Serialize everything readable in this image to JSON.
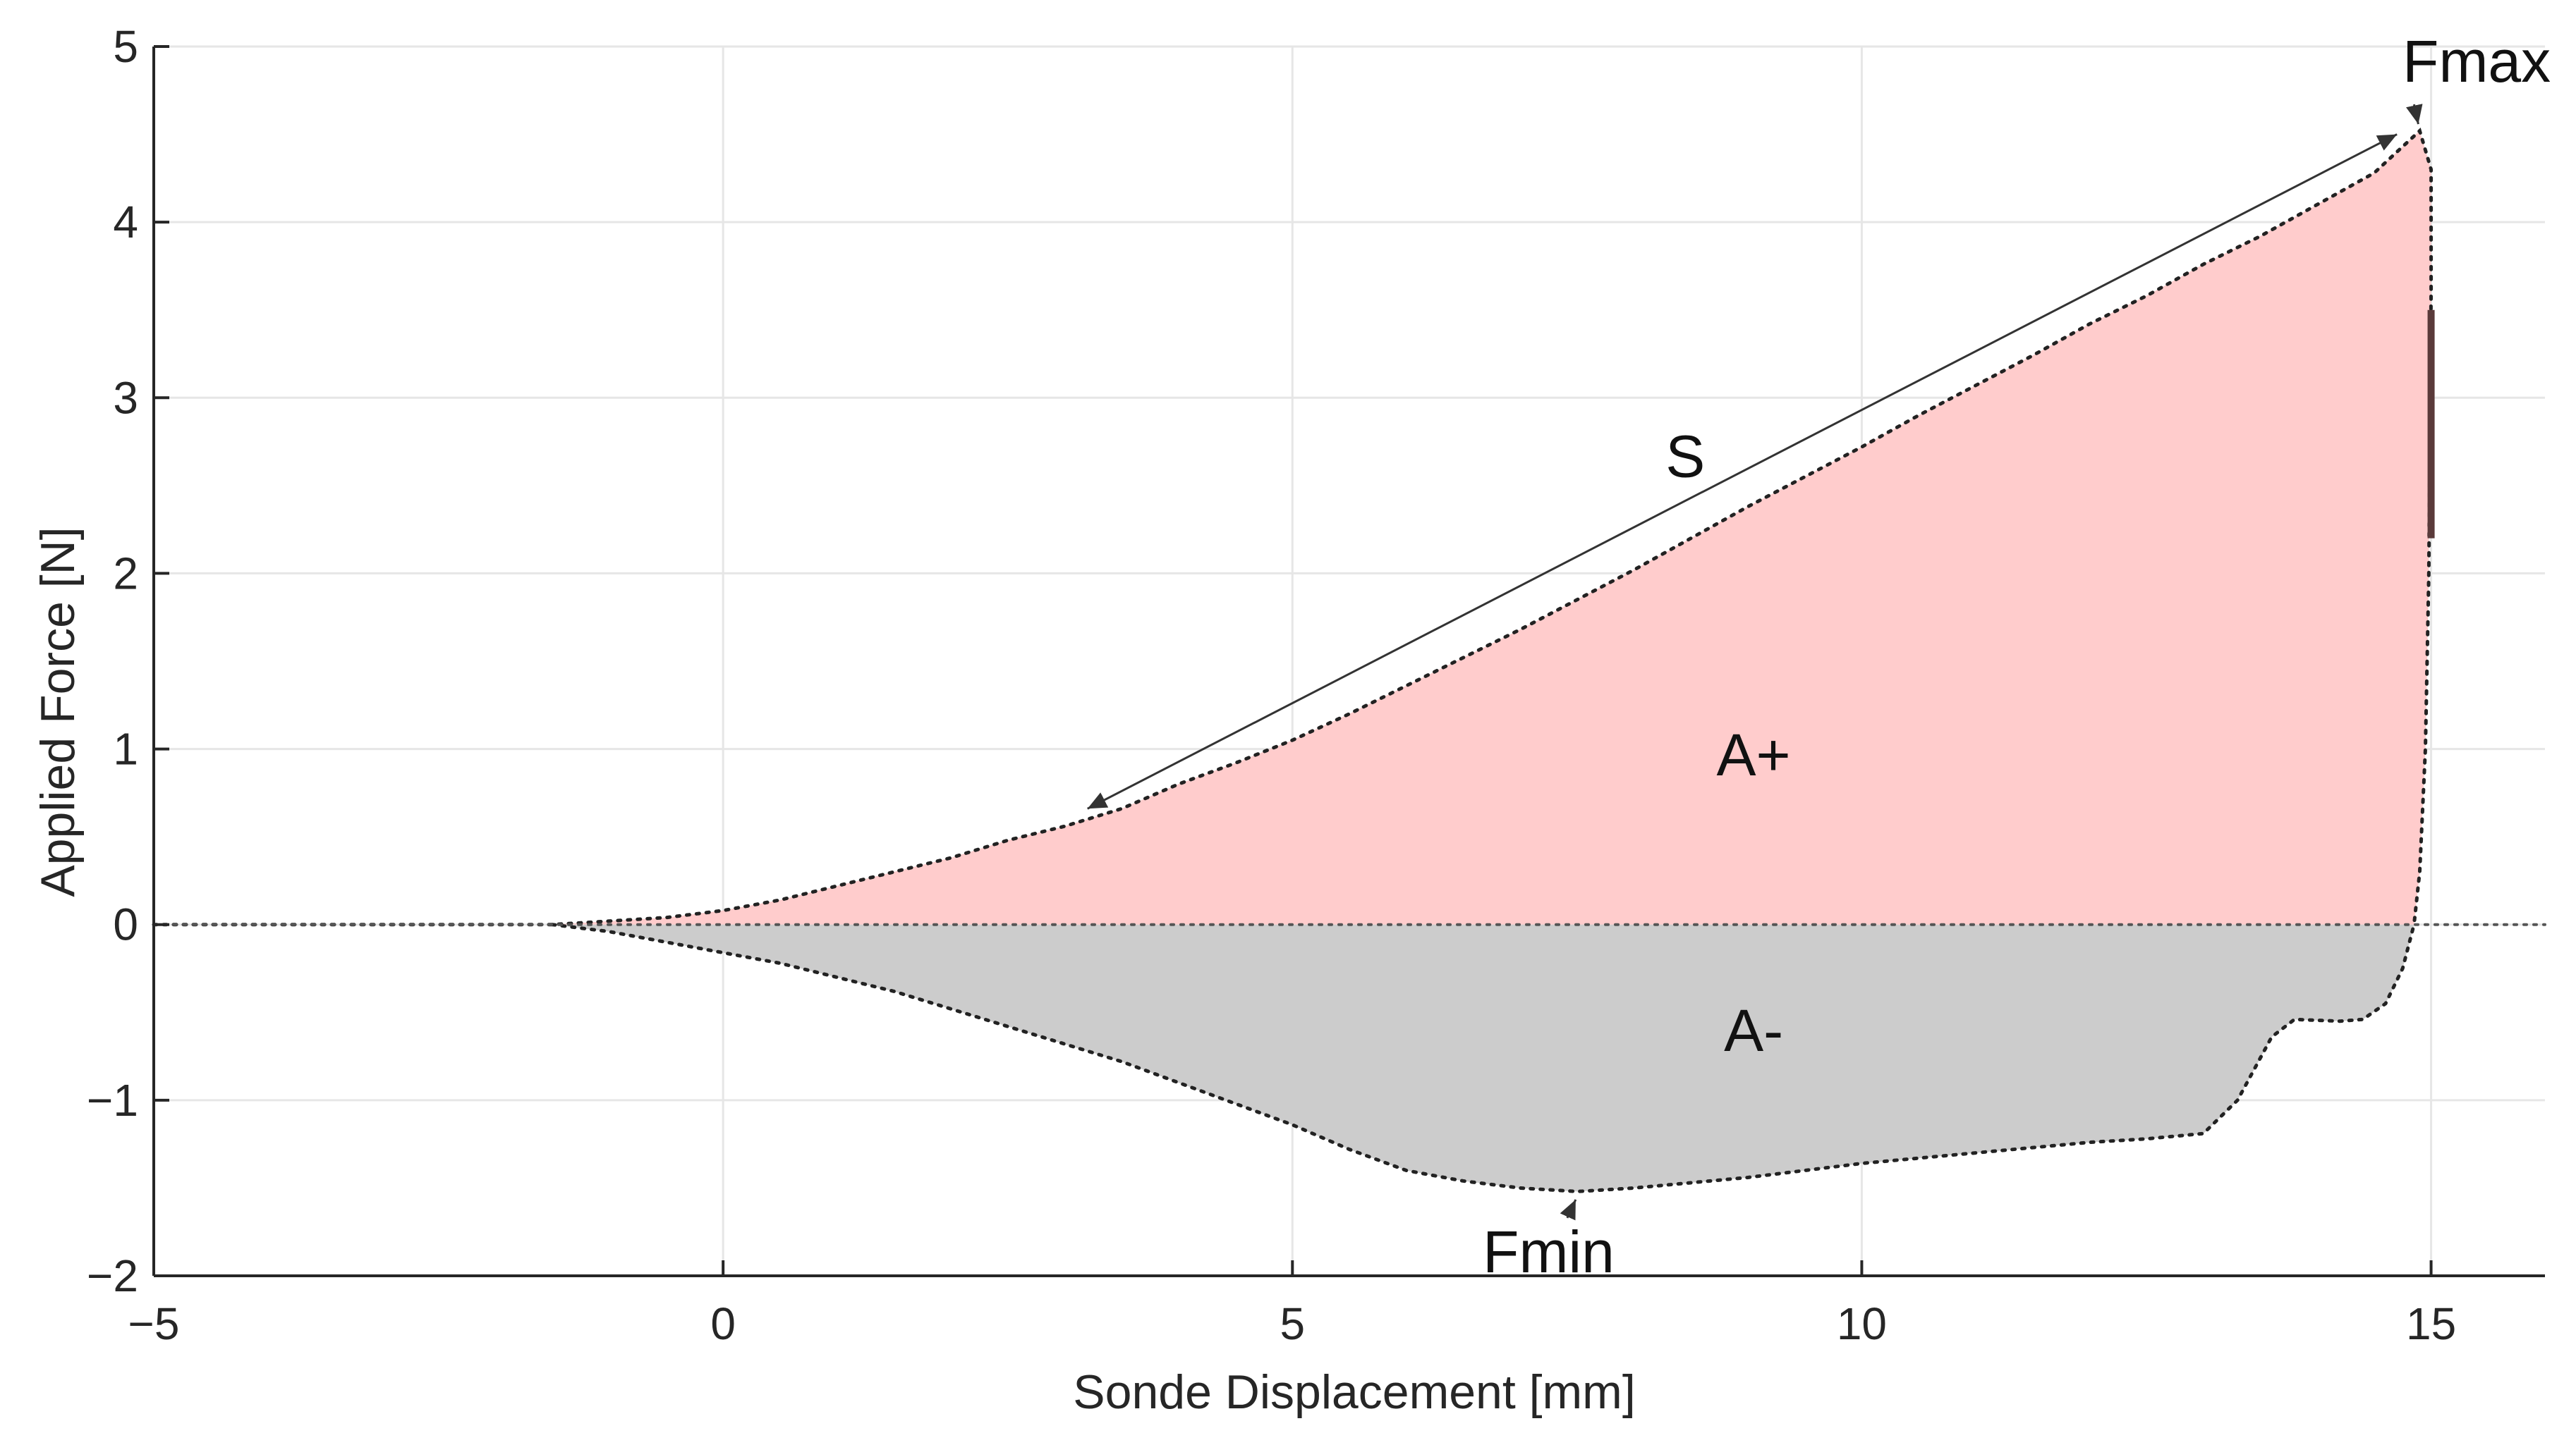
{
  "chart_data": {
    "type": "area",
    "title": "",
    "xlabel": "Sonde Displacement [mm]",
    "ylabel": "Applied Force [N]",
    "xlim": [
      -5,
      16
    ],
    "ylim": [
      -2,
      5
    ],
    "xticks": [
      -5,
      0,
      5,
      10,
      15
    ],
    "yticks": [
      -2,
      -1,
      0,
      1,
      2,
      3,
      4,
      5
    ],
    "xtick_labels": [
      "−5",
      "0",
      "5",
      "10",
      "15"
    ],
    "ytick_labels": [
      "−2",
      "−1",
      "0",
      "1",
      "2",
      "3",
      "4",
      "5"
    ],
    "grid": true,
    "series": [
      {
        "name": "A+",
        "color": "#ffcccc",
        "fill_to": 0,
        "points": [
          [
            -5,
            0
          ],
          [
            -3,
            0
          ],
          [
            -2,
            0
          ],
          [
            -1.5,
            0
          ],
          [
            -1,
            0.02
          ],
          [
            -0.5,
            0.04
          ],
          [
            0,
            0.08
          ],
          [
            0.5,
            0.14
          ],
          [
            1,
            0.22
          ],
          [
            1.5,
            0.3
          ],
          [
            2,
            0.38
          ],
          [
            2.5,
            0.48
          ],
          [
            3,
            0.56
          ],
          [
            3.5,
            0.66
          ],
          [
            4,
            0.8
          ],
          [
            4.5,
            0.92
          ],
          [
            5,
            1.05
          ],
          [
            5.5,
            1.2
          ],
          [
            6,
            1.36
          ],
          [
            6.5,
            1.52
          ],
          [
            7,
            1.68
          ],
          [
            7.5,
            1.85
          ],
          [
            8,
            2.02
          ],
          [
            8.5,
            2.2
          ],
          [
            9,
            2.38
          ],
          [
            9.5,
            2.55
          ],
          [
            10,
            2.72
          ],
          [
            10.5,
            2.9
          ],
          [
            11,
            3.07
          ],
          [
            11.5,
            3.24
          ],
          [
            12,
            3.42
          ],
          [
            12.5,
            3.58
          ],
          [
            13,
            3.76
          ],
          [
            13.5,
            3.92
          ],
          [
            14,
            4.1
          ],
          [
            14.5,
            4.28
          ],
          [
            14.9,
            4.52
          ],
          [
            15,
            4.3
          ],
          [
            15,
            3.6
          ],
          [
            14.98,
            2.0
          ],
          [
            14.95,
            1.0
          ],
          [
            14.9,
            0.3
          ],
          [
            14.85,
            0
          ]
        ]
      },
      {
        "name": "A-",
        "color": "#cccccc",
        "fill_to": 0,
        "points": [
          [
            -1.5,
            0
          ],
          [
            -1,
            -0.04
          ],
          [
            -0.5,
            -0.1
          ],
          [
            0,
            -0.16
          ],
          [
            0.5,
            -0.22
          ],
          [
            1,
            -0.3
          ],
          [
            1.5,
            -0.38
          ],
          [
            2,
            -0.48
          ],
          [
            2.5,
            -0.58
          ],
          [
            3,
            -0.68
          ],
          [
            3.5,
            -0.78
          ],
          [
            4,
            -0.9
          ],
          [
            4.5,
            -1.02
          ],
          [
            5,
            -1.14
          ],
          [
            5.5,
            -1.28
          ],
          [
            6,
            -1.4
          ],
          [
            6.5,
            -1.46
          ],
          [
            7,
            -1.5
          ],
          [
            7.5,
            -1.52
          ],
          [
            8,
            -1.5
          ],
          [
            8.5,
            -1.47
          ],
          [
            9,
            -1.44
          ],
          [
            9.5,
            -1.4
          ],
          [
            10,
            -1.36
          ],
          [
            10.5,
            -1.33
          ],
          [
            11,
            -1.3
          ],
          [
            11.5,
            -1.27
          ],
          [
            12,
            -1.24
          ],
          [
            12.5,
            -1.22
          ],
          [
            13,
            -1.19
          ],
          [
            13.3,
            -1.0
          ],
          [
            13.6,
            -0.64
          ],
          [
            13.8,
            -0.54
          ],
          [
            14.2,
            -0.55
          ],
          [
            14.4,
            -0.54
          ],
          [
            14.6,
            -0.45
          ],
          [
            14.75,
            -0.25
          ],
          [
            14.85,
            0
          ]
        ]
      }
    ],
    "s_arrow": {
      "from": [
        3.2,
        0.66
      ],
      "to": [
        14.7,
        4.5
      ]
    },
    "annotations": [
      {
        "text": "Fmax",
        "x": 15.4,
        "y": 4.8,
        "anchor": "middle"
      },
      {
        "text": "S",
        "x": 8.45,
        "y": 2.55,
        "anchor": "middle"
      },
      {
        "text": "A+",
        "x": 9.05,
        "y": 0.85,
        "anchor": "middle"
      },
      {
        "text": "A-",
        "x": 9.05,
        "y": -0.72,
        "anchor": "middle"
      },
      {
        "text": "Fmin",
        "x": 7.25,
        "y": -1.98,
        "anchor": "middle"
      }
    ],
    "markers": [
      {
        "name": "fmax-marker",
        "x": 14.9,
        "y": 4.55
      },
      {
        "name": "fmin-marker",
        "x": 7.5,
        "y": -1.55
      }
    ]
  }
}
